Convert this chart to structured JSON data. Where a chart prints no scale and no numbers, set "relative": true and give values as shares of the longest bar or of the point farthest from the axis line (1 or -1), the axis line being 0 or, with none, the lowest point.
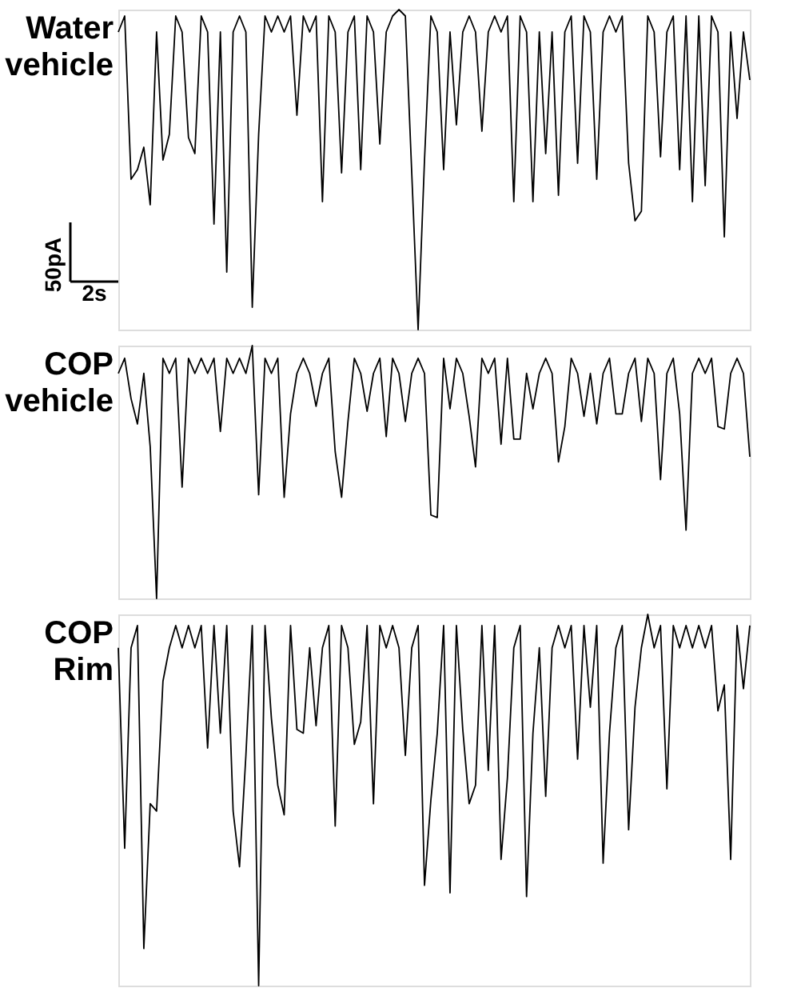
{
  "chart_data": [
    {
      "type": "line",
      "title": "Water vehicle",
      "relative": true,
      "annotations": [
        "50pA",
        "2s"
      ],
      "categories": [
        null,
        null,
        null,
        null,
        null,
        null,
        null,
        null,
        null,
        null,
        null,
        null,
        null,
        null,
        null,
        null,
        null,
        null,
        null,
        null,
        null,
        null,
        null,
        null,
        null,
        null,
        null,
        null,
        null,
        null,
        null,
        null,
        null,
        null,
        null,
        null,
        null,
        null,
        null,
        null,
        null,
        null,
        null,
        null,
        null,
        null,
        null,
        null,
        null,
        null,
        null,
        null,
        null,
        null,
        null,
        null,
        null,
        null,
        null,
        null,
        null,
        null,
        null,
        null,
        null,
        null,
        null,
        null,
        null,
        null,
        null,
        null,
        null,
        null,
        null,
        null,
        null,
        null,
        null,
        null,
        null,
        null,
        null,
        null,
        null,
        null,
        null,
        null,
        null,
        null,
        null,
        null,
        null,
        null,
        null,
        null,
        null,
        null,
        null,
        null
      ],
      "series": [
        {
          "color": "#000000",
          "values": [
            0.93,
            0.98,
            0.47,
            0.5,
            0.57,
            0.39,
            0.93,
            0.53,
            0.61,
            0.98,
            0.93,
            0.6,
            0.55,
            0.98,
            0.93,
            0.33,
            0.93,
            0.18,
            0.93,
            0.98,
            0.93,
            0.07,
            0.61,
            0.98,
            0.93,
            0.98,
            0.93,
            0.98,
            0.67,
            0.98,
            0.93,
            0.98,
            0.4,
            0.98,
            0.93,
            0.49,
            0.93,
            0.98,
            0.5,
            0.98,
            0.93,
            0.58,
            0.93,
            0.98,
            1,
            0.98,
            0.49,
            0,
            0.53,
            0.98,
            0.93,
            0.5,
            0.93,
            0.64,
            0.93,
            0.98,
            0.93,
            0.62,
            0.93,
            0.98,
            0.93,
            0.98,
            0.4,
            0.98,
            0.93,
            0.4,
            0.93,
            0.55,
            0.93,
            0.42,
            0.93,
            0.98,
            0.52,
            0.98,
            0.93,
            0.47,
            0.93,
            0.98,
            0.93,
            0.98,
            0.52,
            0.34,
            0.37,
            0.98,
            0.93,
            0.54,
            0.93,
            0.98,
            0.5,
            0.98,
            0.4,
            0.98,
            0.45,
            0.98,
            0.93,
            0.29,
            0.93,
            0.66,
            0.93,
            0.78
          ]
        }
      ]
    },
    {
      "type": "line",
      "title": "COP vehicle",
      "relative": true,
      "categories": [
        null,
        null,
        null,
        null,
        null,
        null,
        null,
        null,
        null,
        null,
        null,
        null,
        null,
        null,
        null,
        null,
        null,
        null,
        null,
        null,
        null,
        null,
        null,
        null,
        null,
        null,
        null,
        null,
        null,
        null,
        null,
        null,
        null,
        null,
        null,
        null,
        null,
        null,
        null,
        null,
        null,
        null,
        null,
        null,
        null,
        null,
        null,
        null,
        null,
        null,
        null,
        null,
        null,
        null,
        null,
        null,
        null,
        null,
        null,
        null,
        null,
        null,
        null,
        null,
        null,
        null,
        null,
        null,
        null,
        null,
        null,
        null,
        null,
        null,
        null,
        null,
        null,
        null,
        null,
        null,
        null,
        null,
        null,
        null,
        null,
        null,
        null,
        null,
        null,
        null,
        null,
        null,
        null,
        null,
        null,
        null,
        null,
        null,
        null,
        null
      ],
      "series": [
        {
          "color": "#000000",
          "values": [
            0.89,
            0.95,
            0.79,
            0.69,
            0.89,
            0.6,
            0,
            0.95,
            0.89,
            0.95,
            0.44,
            0.95,
            0.89,
            0.95,
            0.89,
            0.95,
            0.66,
            0.95,
            0.89,
            0.95,
            0.89,
            1,
            0.41,
            0.95,
            0.89,
            0.95,
            0.4,
            0.73,
            0.89,
            0.95,
            0.89,
            0.76,
            0.89,
            0.95,
            0.58,
            0.4,
            0.7,
            0.95,
            0.89,
            0.74,
            0.89,
            0.95,
            0.64,
            0.95,
            0.89,
            0.7,
            0.89,
            0.95,
            0.89,
            0.33,
            0.32,
            0.95,
            0.75,
            0.95,
            0.89,
            0.72,
            0.52,
            0.95,
            0.89,
            0.95,
            0.61,
            0.95,
            0.63,
            0.63,
            0.89,
            0.75,
            0.89,
            0.95,
            0.89,
            0.54,
            0.68,
            0.95,
            0.89,
            0.72,
            0.89,
            0.69,
            0.89,
            0.95,
            0.73,
            0.73,
            0.89,
            0.95,
            0.7,
            0.95,
            0.89,
            0.47,
            0.89,
            0.95,
            0.73,
            0.27,
            0.89,
            0.95,
            0.89,
            0.95,
            0.68,
            0.67,
            0.89,
            0.95,
            0.89,
            0.56
          ]
        }
      ]
    },
    {
      "type": "line",
      "title": "COP Rim",
      "relative": true,
      "categories": [
        null,
        null,
        null,
        null,
        null,
        null,
        null,
        null,
        null,
        null,
        null,
        null,
        null,
        null,
        null,
        null,
        null,
        null,
        null,
        null,
        null,
        null,
        null,
        null,
        null,
        null,
        null,
        null,
        null,
        null,
        null,
        null,
        null,
        null,
        null,
        null,
        null,
        null,
        null,
        null,
        null,
        null,
        null,
        null,
        null,
        null,
        null,
        null,
        null,
        null,
        null,
        null,
        null,
        null,
        null,
        null,
        null,
        null,
        null,
        null,
        null,
        null,
        null,
        null,
        null,
        null,
        null,
        null,
        null,
        null,
        null,
        null,
        null,
        null,
        null,
        null,
        null,
        null,
        null,
        null,
        null,
        null,
        null,
        null,
        null,
        null,
        null,
        null,
        null,
        null,
        null,
        null,
        null,
        null,
        null,
        null,
        null,
        null,
        null,
        null
      ],
      "series": [
        {
          "color": "#000000",
          "values": [
            0.91,
            0.37,
            0.91,
            0.97,
            0.1,
            0.49,
            0.47,
            0.82,
            0.91,
            0.97,
            0.91,
            0.97,
            0.91,
            0.97,
            0.64,
            0.97,
            0.68,
            0.97,
            0.47,
            0.32,
            0.62,
            0.97,
            0,
            0.97,
            0.72,
            0.54,
            0.46,
            0.97,
            0.69,
            0.68,
            0.91,
            0.7,
            0.91,
            0.97,
            0.43,
            0.97,
            0.91,
            0.65,
            0.71,
            0.97,
            0.49,
            0.97,
            0.91,
            0.97,
            0.91,
            0.62,
            0.91,
            0.97,
            0.27,
            0.5,
            0.68,
            0.97,
            0.25,
            0.97,
            0.69,
            0.49,
            0.54,
            0.97,
            0.58,
            0.97,
            0.34,
            0.56,
            0.91,
            0.97,
            0.24,
            0.68,
            0.91,
            0.51,
            0.91,
            0.97,
            0.91,
            0.97,
            0.61,
            0.97,
            0.75,
            0.97,
            0.33,
            0.68,
            0.91,
            0.97,
            0.42,
            0.75,
            0.91,
            1,
            0.91,
            0.97,
            0.53,
            0.97,
            0.91,
            0.97,
            0.91,
            0.97,
            0.91,
            0.97,
            0.74,
            0.81,
            0.34,
            0.97,
            0.8,
            0.97
          ]
        }
      ]
    }
  ]
}
